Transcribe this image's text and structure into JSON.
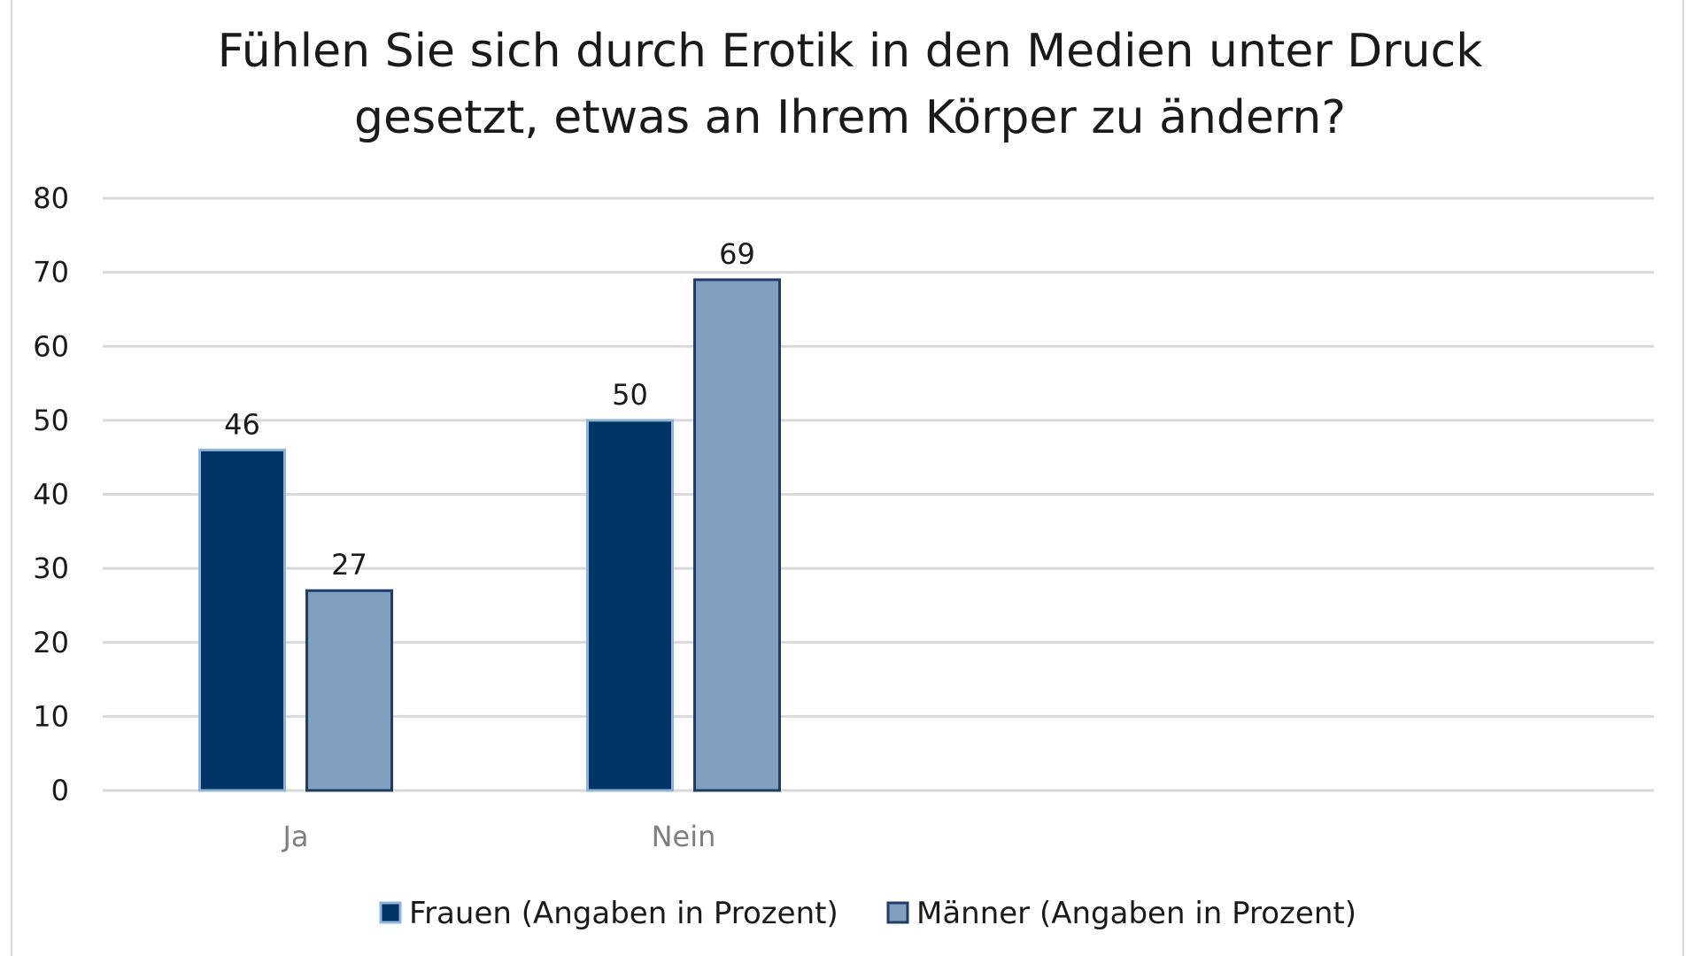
{
  "chart_data": {
    "type": "bar",
    "title": "Fühlen Sie sich durch Erotik in den Medien unter Druck gesetzt, etwas an Ihrem Körper zu ändern?",
    "title_lines": [
      "Fühlen Sie sich durch Erotik in den Medien unter Druck",
      "gesetzt, etwas an Ihrem Körper zu ändern?"
    ],
    "categories": [
      "Ja",
      "Nein"
    ],
    "series": [
      {
        "name": "Frauen (Angaben in Prozent)",
        "values": [
          46,
          50
        ],
        "color": "#003366",
        "border": "#8fb3d9"
      },
      {
        "name": "Männer (Angaben in Prozent)",
        "values": [
          27,
          69
        ],
        "color": "#809fbf",
        "border": "#1f3d66"
      }
    ],
    "xlabel": "",
    "ylabel": "",
    "ylim": [
      0,
      80
    ],
    "yticks": [
      "0",
      "10",
      "20",
      "30",
      "40",
      "50",
      "60",
      "70",
      "80"
    ],
    "grid": true,
    "legend": "bottom",
    "data_labels": true
  }
}
